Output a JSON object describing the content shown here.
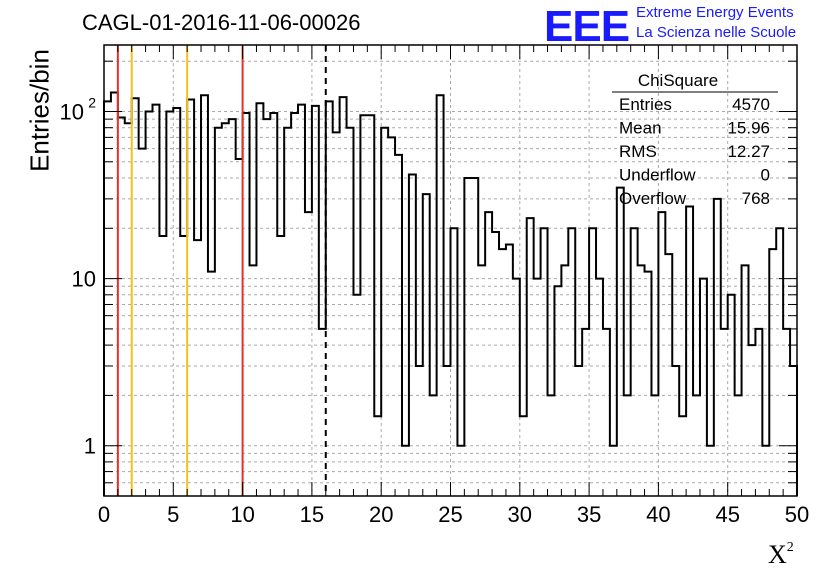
{
  "header": {
    "title": "CAGL-01-2016-11-06-00026",
    "logo": "EEE",
    "logo_line1": "Extreme Energy Events",
    "logo_line2": "La Scienza nelle Scuole"
  },
  "stats": {
    "name": "ChiSquare",
    "rows": [
      {
        "label": "Entries",
        "value": "4570"
      },
      {
        "label": "Mean",
        "value": "15.96"
      },
      {
        "label": "RMS",
        "value": "12.27"
      },
      {
        "label": "Underflow",
        "value": "0"
      },
      {
        "label": "Overflow",
        "value": "768"
      }
    ]
  },
  "chart_data": {
    "type": "histogram",
    "title": "CAGL-01-2016-11-06-00026",
    "xlabel": "X",
    "xlabel_superscript": "2",
    "ylabel": "Entries/bin",
    "xlim": [
      0,
      50
    ],
    "ylim": [
      0.5,
      250
    ],
    "yscale": "log",
    "grid": true,
    "bin_width": 0.5,
    "x_ticks": [
      "0",
      "5",
      "10",
      "15",
      "20",
      "25",
      "30",
      "35",
      "40",
      "45",
      "50"
    ],
    "y_ticks": [
      {
        "value": 1,
        "label": "1"
      },
      {
        "value": 10,
        "label": "10"
      },
      {
        "value": 100,
        "label": "10",
        "exponent": "2"
      }
    ],
    "values": [
      115,
      130,
      92,
      85,
      120,
      60,
      100,
      110,
      18,
      100,
      105,
      18,
      118,
      17,
      125,
      11,
      80,
      85,
      90,
      52,
      98,
      12,
      112,
      90,
      98,
      18,
      80,
      98,
      110,
      25,
      108,
      5,
      115,
      75,
      122,
      80,
      8,
      95,
      95,
      1.5,
      80,
      70,
      55,
      1,
      42,
      3,
      32,
      2,
      125,
      3,
      20,
      1,
      40,
      40,
      12,
      25,
      19,
      15,
      16,
      10,
      1.5,
      23,
      10,
      20,
      2,
      9,
      12,
      20,
      3,
      5,
      20,
      10,
      5,
      1,
      35,
      2,
      20,
      12,
      11,
      2,
      25,
      14,
      3,
      1.5,
      27,
      2,
      10,
      1,
      30,
      5,
      8,
      2,
      12,
      4,
      5,
      1,
      15,
      20,
      5,
      3
    ],
    "vertical_lines": [
      {
        "x": 1,
        "color": "#e8302a",
        "style": "solid"
      },
      {
        "x": 2,
        "color": "#f2c21b",
        "style": "solid"
      },
      {
        "x": 6,
        "color": "#f2c21b",
        "style": "solid"
      },
      {
        "x": 10,
        "color": "#e8302a",
        "style": "solid"
      },
      {
        "x": 16,
        "color": "#000000",
        "style": "dashed"
      }
    ]
  }
}
